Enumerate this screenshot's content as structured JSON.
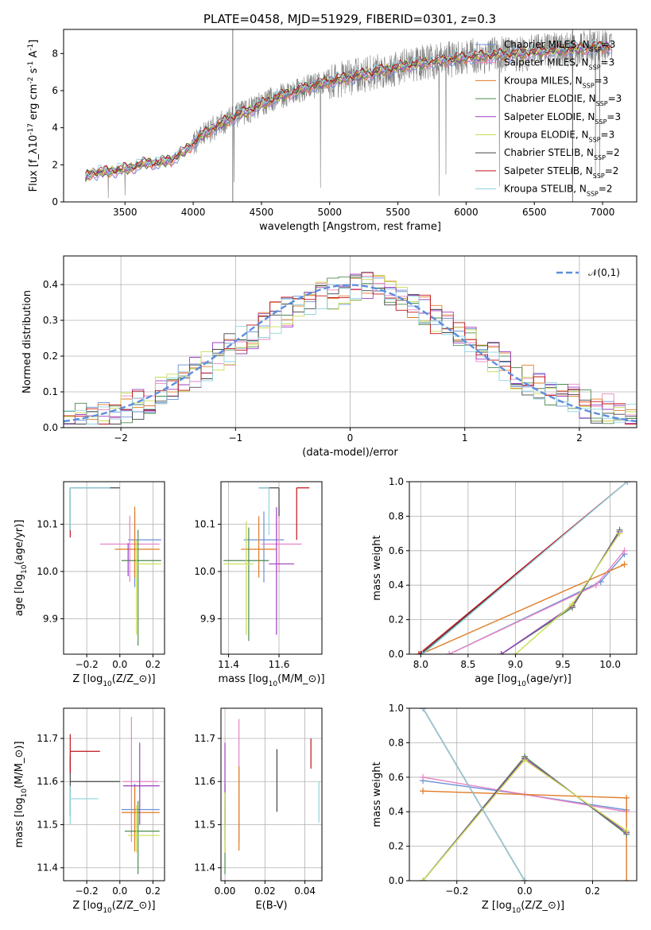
{
  "figure": {
    "title": "PLATE=0458, MJD=51929, FIBERID=0301, z=0.3"
  },
  "colors": {
    "Chabrier MILES": "#6a8fd8",
    "Salpeter MILES": "#e884c4",
    "Kroupa MILES": "#e07b25",
    "Chabrier ELODIE": "#4e8a4e",
    "Salpeter ELODIE": "#9b3fbf",
    "Kroupa ELODIE": "#c9dc52",
    "Chabrier STELIB": "#444444",
    "Salpeter STELIB": "#c0131a",
    "Kroupa STELIB": "#8fd3df",
    "normal_curve": "#5b8ede",
    "data_spectrum": "#808080"
  },
  "chart_data": [
    {
      "id": "spectrum",
      "type": "line",
      "xlabel": "wavelength [Angstrom, rest frame]",
      "ylabel": "Flux [f$_\\lambda$10$^{-17}$ erg cm$^{-2}$ s$^{-1}$ A$^{-1}$]",
      "xlim": [
        3050,
        7250
      ],
      "ylim": [
        0,
        9.3
      ],
      "xticks": [
        3500,
        4000,
        4500,
        5000,
        5500,
        6000,
        6500,
        7000
      ],
      "yticks": [
        0,
        2,
        4,
        6,
        8
      ],
      "legend_loc": "upper right",
      "grid": false,
      "data_range": [
        3210,
        7070
      ],
      "continuum": {
        "x": [
          3210,
          3250,
          3400,
          3550,
          3650,
          3750,
          3850,
          3950,
          4050,
          4150,
          4300,
          4400,
          4600,
          4800,
          5000,
          5200,
          5400,
          5600,
          5800,
          6000,
          6200,
          6400,
          6600,
          6800,
          7000,
          7070
        ],
        "y": [
          1.3,
          1.55,
          1.65,
          1.85,
          2.1,
          2.1,
          2.3,
          2.8,
          3.5,
          4.0,
          4.6,
          4.9,
          5.6,
          6.1,
          6.5,
          6.8,
          7.1,
          7.4,
          7.6,
          7.8,
          7.9,
          8.0,
          8.15,
          8.25,
          8.35,
          8.4
        ]
      },
      "series": [
        {
          "name": "Chabrier MILES, N$_{SSP}$=3"
        },
        {
          "name": "Salpeter MILES, N$_{SSP}$=3"
        },
        {
          "name": "Kroupa MILES, N$_{SSP}$=3"
        },
        {
          "name": "Chabrier ELODIE, N$_{SSP}$=3"
        },
        {
          "name": "Salpeter ELODIE, N$_{SSP}$=3"
        },
        {
          "name": "Kroupa ELODIE, N$_{SSP}$=3"
        },
        {
          "name": "Chabrier STELIB, N$_{SSP}$=2"
        },
        {
          "name": "Salpeter STELIB, N$_{SSP}$=2"
        },
        {
          "name": "Kroupa STELIB, N$_{SSP}$=2"
        }
      ]
    },
    {
      "id": "residuals",
      "type": "line",
      "xlabel": "(data-model)/error",
      "ylabel": "Normed distribution",
      "xlim": [
        -2.5,
        2.5
      ],
      "ylim": [
        0,
        0.48
      ],
      "xticks": [
        -2,
        -1,
        0,
        1,
        2
      ],
      "yticks": [
        0.0,
        0.1,
        0.2,
        0.3,
        0.4
      ],
      "grid": true,
      "legend_loc": "upper right",
      "normal_label": "$\\mathcal{N}(0,1)$",
      "bin_edges": [
        -2.5,
        2.5
      ],
      "bin_count": 50
    },
    {
      "id": "age-vs-Z",
      "type": "scatter",
      "xlabel": "Z [log$_{10}$(Z/Z$_\\odot$)]",
      "ylabel": "age  [log$_{10}$(age/yr)]",
      "xlim": [
        -0.34,
        0.27
      ],
      "ylim": [
        9.825,
        10.19
      ],
      "xticks": [
        -0.2,
        0.0,
        0.2
      ],
      "yticks": [
        9.9,
        10.0,
        10.1
      ],
      "grid": true,
      "points": [
        {
          "series": "Chabrier MILES",
          "x": 0.09,
          "y": 10.067,
          "xerr": [
            0.04,
            0.16
          ],
          "yerr": [
            0.1,
            0.06
          ]
        },
        {
          "series": "Salpeter MILES",
          "x": 0.06,
          "y": 10.058,
          "xerr": [
            0.18,
            0.18
          ],
          "yerr": [
            0.08,
            0.06
          ]
        },
        {
          "series": "Kroupa MILES",
          "x": 0.09,
          "y": 10.047,
          "xerr": [
            0.12,
            0.15
          ],
          "yerr": [
            0.06,
            0.09
          ]
        },
        {
          "series": "Chabrier ELODIE",
          "x": 0.11,
          "y": 10.023,
          "xerr": [
            0.1,
            0.14
          ],
          "yerr": [
            0.18,
            0.065
          ]
        },
        {
          "series": "Salpeter ELODIE",
          "x": 0.05,
          "y": 10.0,
          "xerr": [
            0.0,
            0.0
          ],
          "yerr": [
            0.01,
            0.06
          ]
        },
        {
          "series": "Kroupa ELODIE",
          "x": 0.1,
          "y": 10.016,
          "xerr": [
            0.0,
            0.15
          ],
          "yerr": [
            0.15,
            0.05
          ]
        },
        {
          "series": "Chabrier STELIB",
          "x": -0.3,
          "y": 10.177,
          "xerr": [
            0.0,
            0.3
          ],
          "yerr": [
            0.09,
            0.0
          ]
        },
        {
          "series": "Salpeter STELIB",
          "x": -0.3,
          "y": 10.177,
          "xerr": [
            0.0,
            0.0
          ],
          "yerr": [
            0.105,
            0.0
          ]
        },
        {
          "series": "Kroupa STELIB",
          "x": -0.3,
          "y": 10.177,
          "xerr": [
            0.0,
            0.24
          ],
          "yerr": [
            0.09,
            0.0
          ]
        }
      ]
    },
    {
      "id": "age-vs-mass",
      "type": "scatter",
      "xlabel": "mass [log$_{10}$(M/M$_\\odot$)]",
      "ylabel": "",
      "xlim": [
        11.37,
        11.77
      ],
      "ylim": [
        9.825,
        10.19
      ],
      "xticks": [
        11.4,
        11.6
      ],
      "yticks": [
        9.9,
        10.0,
        10.1
      ],
      "grid": true,
      "points": [
        {
          "series": "Chabrier MILES",
          "x": 11.54,
          "y": 10.067,
          "xerr": [
            0.08,
            0.08
          ],
          "yerr": [
            0.09,
            0.06
          ]
        },
        {
          "series": "Salpeter MILES",
          "x": 11.6,
          "y": 10.058,
          "xerr": [
            0.07,
            0.09
          ],
          "yerr": [
            0.06,
            0.08
          ]
        },
        {
          "series": "Kroupa MILES",
          "x": 11.52,
          "y": 10.047,
          "xerr": [
            0.07,
            0.07
          ],
          "yerr": [
            0.06,
            0.07
          ]
        },
        {
          "series": "Chabrier ELODIE",
          "x": 11.48,
          "y": 10.023,
          "xerr": [
            0.1,
            0.08
          ],
          "yerr": [
            0.17,
            0.07
          ]
        },
        {
          "series": "Salpeter ELODIE",
          "x": 11.59,
          "y": 10.016,
          "xerr": [
            0.03,
            0.07
          ],
          "yerr": [
            0.15,
            0.12
          ]
        },
        {
          "series": "Kroupa ELODIE",
          "x": 11.47,
          "y": 10.016,
          "xerr": [
            0.09,
            0.03
          ],
          "yerr": [
            0.15,
            0.09
          ]
        },
        {
          "series": "Chabrier STELIB",
          "x": 11.6,
          "y": 10.177,
          "xerr": [
            0.08,
            0.0
          ],
          "yerr": [
            0.06,
            0.0
          ]
        },
        {
          "series": "Salpeter STELIB",
          "x": 11.67,
          "y": 10.177,
          "xerr": [
            0.0,
            0.05
          ],
          "yerr": [
            0.11,
            0.0
          ]
        },
        {
          "series": "Kroupa STELIB",
          "x": 11.56,
          "y": 10.177,
          "xerr": [
            0.04,
            0.0
          ],
          "yerr": [
            0.1,
            0.0
          ]
        }
      ]
    },
    {
      "id": "mass-weight-vs-age",
      "type": "line",
      "xlabel": "age  [log$_{10}$(age/yr)]",
      "ylabel": "mass weight",
      "xlim": [
        7.88,
        10.28
      ],
      "ylim": [
        0,
        1.0
      ],
      "xticks": [
        8.0,
        8.5,
        9.0,
        9.5,
        10.0
      ],
      "yticks": [
        0.0,
        0.2,
        0.4,
        0.6,
        0.8,
        1.0
      ],
      "grid": true,
      "series": [
        {
          "series": "Chabrier MILES",
          "x": [
            8.3,
            9.9,
            10.15
          ],
          "y": [
            0.0,
            0.42,
            0.58
          ]
        },
        {
          "series": "Salpeter MILES",
          "x": [
            8.3,
            9.85,
            10.15
          ],
          "y": [
            0.0,
            0.4,
            0.6
          ]
        },
        {
          "series": "Kroupa MILES",
          "x": [
            8.0,
            10.15
          ],
          "y": [
            0.0,
            0.52
          ]
        },
        {
          "series": "Chabrier ELODIE",
          "x": [
            8.85,
            9.6,
            10.1
          ],
          "y": [
            0.0,
            0.27,
            0.72
          ]
        },
        {
          "series": "Salpeter ELODIE",
          "x": [
            8.85,
            9.6,
            10.1
          ],
          "y": [
            0.0,
            0.28,
            0.71
          ]
        },
        {
          "series": "Kroupa ELODIE",
          "x": [
            9.0,
            9.6,
            10.1
          ],
          "y": [
            0.0,
            0.29,
            0.7
          ]
        },
        {
          "series": "Chabrier STELIB",
          "x": [
            8.0,
            10.18
          ],
          "y": [
            0.0,
            1.0
          ]
        },
        {
          "series": "Salpeter STELIB",
          "x": [
            7.98,
            10.18
          ],
          "y": [
            0.0,
            1.0
          ]
        },
        {
          "series": "Kroupa STELIB",
          "x": [
            8.02,
            10.18
          ],
          "y": [
            0.0,
            1.0
          ]
        }
      ]
    },
    {
      "id": "mass-vs-Z",
      "type": "scatter",
      "xlabel": "Z [log$_{10}$(Z/Z$_\\odot$)]",
      "ylabel": "mass [log$_{10}$(M/M$_\\odot$)]",
      "xlim": [
        -0.34,
        0.27
      ],
      "ylim": [
        11.37,
        11.77
      ],
      "xticks": [
        -0.2,
        0.0,
        0.2
      ],
      "yticks": [
        11.4,
        11.5,
        11.6,
        11.7
      ],
      "grid": true,
      "points": [
        {
          "series": "Chabrier MILES",
          "x": 0.09,
          "y": 11.535,
          "xerr": [
            0.08,
            0.15
          ],
          "yerr": [
            0.07,
            0.06
          ]
        },
        {
          "series": "Salpeter MILES",
          "x": 0.07,
          "y": 11.6,
          "xerr": [
            0.05,
            0.16
          ],
          "yerr": [
            0.14,
            0.15
          ]
        },
        {
          "series": "Kroupa MILES",
          "x": 0.09,
          "y": 11.528,
          "xerr": [
            0.08,
            0.15
          ],
          "yerr": [
            0.09,
            0.06
          ]
        },
        {
          "series": "Chabrier ELODIE",
          "x": 0.11,
          "y": 11.485,
          "xerr": [
            0.08,
            0.13
          ],
          "yerr": [
            0.1,
            0.07
          ]
        },
        {
          "series": "Salpeter ELODIE",
          "x": 0.12,
          "y": 11.59,
          "xerr": [
            0.1,
            0.12
          ],
          "yerr": [
            0.09,
            0.1
          ]
        },
        {
          "series": "Kroupa ELODIE",
          "x": 0.1,
          "y": 11.475,
          "xerr": [
            0.05,
            0.14
          ],
          "yerr": [
            0.04,
            0.07
          ]
        },
        {
          "series": "Chabrier STELIB",
          "x": -0.3,
          "y": 11.6,
          "xerr": [
            0.0,
            0.3
          ],
          "yerr": [
            0.08,
            0.06
          ]
        },
        {
          "series": "Salpeter STELIB",
          "x": -0.3,
          "y": 11.67,
          "xerr": [
            0.0,
            0.18
          ],
          "yerr": [
            0.05,
            0.04
          ]
        },
        {
          "series": "Kroupa STELIB",
          "x": -0.3,
          "y": 11.56,
          "xerr": [
            0.0,
            0.17
          ],
          "yerr": [
            0.06,
            0.03
          ]
        }
      ]
    },
    {
      "id": "mass-vs-EBV",
      "type": "scatter",
      "xlabel": "E(B-V)",
      "ylabel": "",
      "xlim": [
        -0.002,
        0.0485
      ],
      "ylim": [
        11.37,
        11.77
      ],
      "xticks": [
        0.0,
        0.02,
        0.04
      ],
      "yticks": [
        11.4,
        11.5,
        11.6,
        11.7
      ],
      "grid": true,
      "points": [
        {
          "series": "Chabrier MILES",
          "x": 0.0,
          "y": 11.535,
          "xerr": [
            0,
            0
          ],
          "yerr": [
            0.07,
            0.06
          ]
        },
        {
          "series": "Salpeter MILES",
          "x": 0.007,
          "y": 11.6,
          "xerr": [
            0,
            0
          ],
          "yerr": [
            0.14,
            0.145
          ]
        },
        {
          "series": "Kroupa MILES",
          "x": 0.007,
          "y": 11.53,
          "xerr": [
            0,
            0
          ],
          "yerr": [
            0.09,
            0.105
          ]
        },
        {
          "series": "Chabrier ELODIE",
          "x": 0.0,
          "y": 11.485,
          "xerr": [
            0,
            0
          ],
          "yerr": [
            0.1,
            0.07
          ]
        },
        {
          "series": "Salpeter ELODIE",
          "x": 0.0,
          "y": 11.59,
          "xerr": [
            0,
            0
          ],
          "yerr": [
            0.09,
            0.1
          ]
        },
        {
          "series": "Kroupa ELODIE",
          "x": 0.0,
          "y": 11.475,
          "xerr": [
            0,
            0
          ],
          "yerr": [
            0.04,
            0.1
          ]
        },
        {
          "series": "Chabrier STELIB",
          "x": 0.026,
          "y": 11.6,
          "xerr": [
            0,
            0
          ],
          "yerr": [
            0.07,
            0.075
          ]
        },
        {
          "series": "Salpeter STELIB",
          "x": 0.043,
          "y": 11.67,
          "xerr": [
            0,
            0
          ],
          "yerr": [
            0.04,
            0.03
          ]
        },
        {
          "series": "Kroupa STELIB",
          "x": 0.047,
          "y": 11.56,
          "xerr": [
            0,
            0
          ],
          "yerr": [
            0.055,
            0.04
          ]
        }
      ]
    },
    {
      "id": "mass-weight-vs-Z",
      "type": "line",
      "xlabel": "Z [log$_{10}$(Z/Z$_\\odot$)]",
      "ylabel": "mass weight",
      "xlim": [
        -0.34,
        0.33
      ],
      "ylim": [
        0,
        1.0
      ],
      "xticks": [
        -0.2,
        0.0,
        0.2
      ],
      "yticks": [
        0.0,
        0.2,
        0.4,
        0.6,
        0.8,
        1.0
      ],
      "grid": true,
      "series": [
        {
          "series": "Chabrier MILES",
          "x": [
            -0.3,
            0.0,
            0.3
          ],
          "y": [
            0.58,
            0.5,
            0.41
          ]
        },
        {
          "series": "Salpeter MILES",
          "x": [
            -0.3,
            0.0,
            0.3
          ],
          "y": [
            0.6,
            0.5,
            0.4
          ]
        },
        {
          "series": "Kroupa MILES",
          "x": [
            -0.3,
            0.3,
            0.3
          ],
          "y": [
            0.52,
            0.48,
            0.0
          ]
        },
        {
          "series": "Chabrier ELODIE",
          "x": [
            -0.3,
            0.0,
            0.3
          ],
          "y": [
            0.0,
            0.72,
            0.27
          ]
        },
        {
          "series": "Salpeter ELODIE",
          "x": [
            -0.3,
            0.0,
            0.3
          ],
          "y": [
            0.0,
            0.71,
            0.28
          ]
        },
        {
          "series": "Kroupa ELODIE",
          "x": [
            -0.3,
            0.0,
            0.3
          ],
          "y": [
            0.0,
            0.7,
            0.29
          ]
        },
        {
          "series": "Chabrier STELIB",
          "x": [
            -0.3,
            0.0
          ],
          "y": [
            1.0,
            0.0
          ]
        },
        {
          "series": "Salpeter STELIB",
          "x": [
            -0.3,
            0.0
          ],
          "y": [
            1.0,
            0.0
          ]
        },
        {
          "series": "Kroupa STELIB",
          "x": [
            -0.3,
            0.0
          ],
          "y": [
            1.0,
            0.0
          ]
        }
      ]
    }
  ]
}
